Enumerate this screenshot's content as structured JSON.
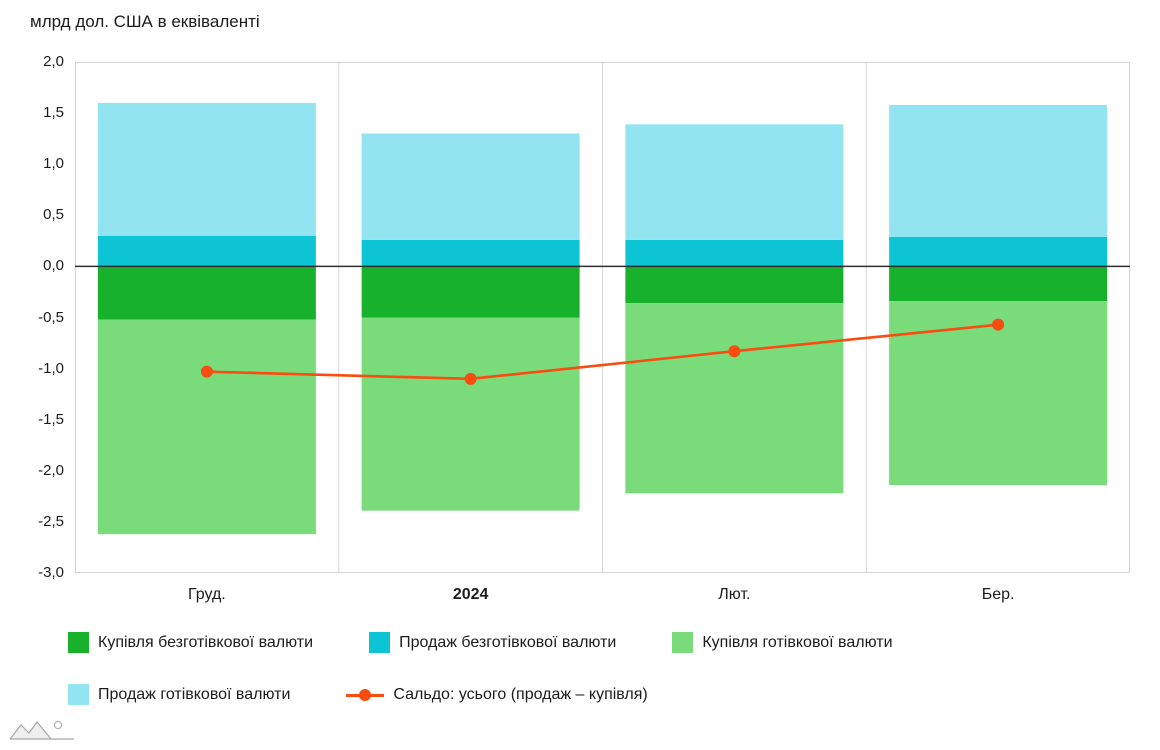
{
  "chart_data": {
    "type": "bar",
    "title": "млрд дол. США в еквіваленті",
    "categories": [
      "Груд.",
      "2024",
      "Лют.",
      "Бер."
    ],
    "bold_category_index": 1,
    "ylim": [
      -3.0,
      2.0
    ],
    "ytick_step": 0.5,
    "ytick_labels": [
      "2,0",
      "1,5",
      "1,0",
      "0,5",
      "0,0",
      "-0,5",
      "-1,0",
      "-1,5",
      "-2,0",
      "-2,5",
      "-3,0"
    ],
    "grid": "vertical-separators-and-zero-line",
    "legend_position": "bottom",
    "legend_rows": [
      [
        0,
        1,
        2
      ],
      [
        3,
        4
      ]
    ],
    "series": [
      {
        "name": "Купівля безготівкової валюти",
        "kind": "bar",
        "color": "#17b12b",
        "values": [
          -0.52,
          -0.5,
          -0.36,
          -0.34
        ]
      },
      {
        "name": "Продаж безготівкової валюти",
        "kind": "bar",
        "color": "#0cc4d4",
        "values": [
          0.3,
          0.26,
          0.26,
          0.29
        ]
      },
      {
        "name": "Купівля готівкової валюти",
        "kind": "bar",
        "color": "#7adb7a",
        "values": [
          -2.1,
          -1.89,
          -1.86,
          -1.8
        ]
      },
      {
        "name": "Продаж готівкової валюти",
        "kind": "bar",
        "color": "#92e4f0",
        "values": [
          1.3,
          1.04,
          1.13,
          1.29
        ]
      },
      {
        "name": "Сальдо: усього (продаж – купівля)",
        "kind": "line",
        "color": "#f84c11",
        "values": [
          -1.03,
          -1.1,
          -0.83,
          -0.57
        ]
      }
    ],
    "stacked_totals": {
      "sell_total": [
        1.6,
        1.3,
        1.39,
        1.58
      ],
      "buy_total": [
        -2.62,
        -2.39,
        -2.22,
        -2.14
      ]
    }
  }
}
